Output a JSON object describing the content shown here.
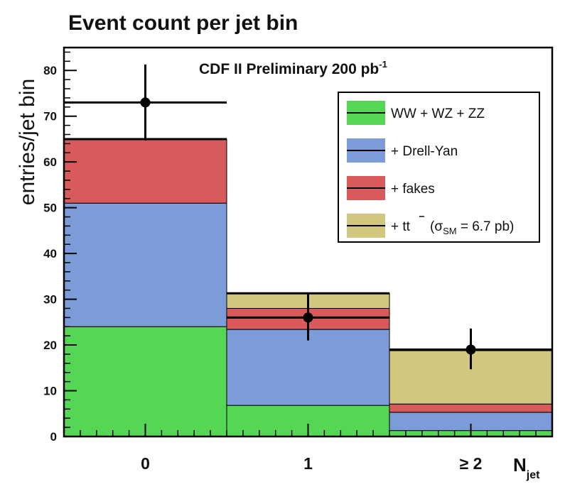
{
  "chart_data": {
    "type": "bar",
    "stacked": true,
    "title": "Event count per jet bin",
    "annotation": "CDF II Preliminary 200 pb",
    "annotation_sup": "-1",
    "ylabel": "entries/jet bin",
    "xlabel": "N",
    "xlabel_sub": "jet",
    "ylim": [
      0,
      85
    ],
    "yticks": [
      0,
      10,
      20,
      30,
      40,
      50,
      60,
      70,
      80
    ],
    "categories": [
      "0",
      "1",
      "≥ 2"
    ],
    "series": [
      {
        "name": "WW + WZ + ZZ",
        "color": "#55d655",
        "values": [
          24,
          6.8,
          1.3
        ]
      },
      {
        "name": "+ Drell-Yan",
        "color": "#7b9bd9",
        "values": [
          27,
          16.6,
          4
        ]
      },
      {
        "name": "+ fakes",
        "color": "#d95a5a",
        "values": [
          14,
          4.6,
          1.8
        ]
      },
      {
        "name": "+ tt",
        "color": "#d2c77e",
        "values": [
          0,
          3.3,
          11.8
        ]
      }
    ],
    "legend_ttbar_detail": {
      "open": "(σ",
      "sub": "SM",
      "close": " = 6.7 pb)"
    },
    "data_points": {
      "values": [
        73,
        26,
        19
      ],
      "err_low": [
        8.3,
        5,
        4.3
      ],
      "err_high": [
        8.3,
        5.2,
        4.6
      ]
    },
    "legend_position": "top-right"
  }
}
